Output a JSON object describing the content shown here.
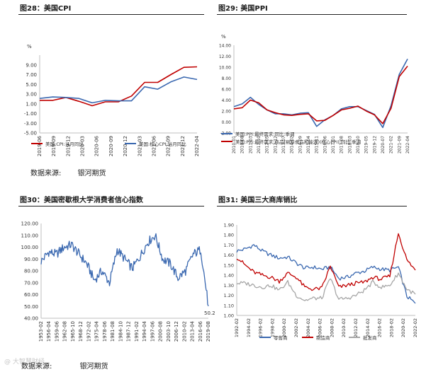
{
  "sections": {
    "top_left_title": "图28：美国CPI",
    "top_right_title": "图29:   美国PPI",
    "bottom_left_title": "图30：美国密歇根大学消费者信心指数",
    "bottom_right_title": "图31:   美国三大商库销比"
  },
  "source_top": {
    "label": "数据来源:",
    "value": "银河期货"
  },
  "source_bottom": {
    "label": "数据来源:",
    "value": "银河期货"
  },
  "watermark": "@ 大智慧财经",
  "colors": {
    "red": "#c00000",
    "blue": "#3a68b0",
    "gray": "#a6a6a6",
    "axis": "#bfbfbf",
    "tick": "#333333",
    "rule": "#222222"
  },
  "chart_data": [
    {
      "id": "cpi",
      "type": "line",
      "title": "图28：美国CPI",
      "ylabel": "%",
      "ylim": [
        -5,
        11
      ],
      "yticks": [
        -5,
        -3,
        -1,
        1,
        3,
        5,
        7,
        9
      ],
      "ytick_labels": [
        "-5.00",
        "-3.00",
        "-1.00",
        "1.00",
        "3.00",
        "5.00",
        "7.00",
        "9.00"
      ],
      "x": [
        "2019-06",
        "2019-09",
        "2019-12",
        "2020-03",
        "2020-06",
        "2020-09",
        "2020-12",
        "2021-03",
        "2021-06",
        "2021-09",
        "2021-12",
        "2022-03",
        "2022-05"
      ],
      "xtick_labels": [
        "2019-06",
        "2019-09",
        "2019-12",
        "2020-03",
        "2020-06",
        "2020-09",
        "2020-12",
        "2021-03",
        "2021-06",
        "2021-09",
        "2021-12",
        "2022-04"
      ],
      "series": [
        {
          "name": "美国:CPI:当月同比",
          "color": "red",
          "values": [
            1.7,
            1.7,
            2.3,
            1.5,
            0.6,
            1.4,
            1.4,
            2.6,
            5.4,
            5.4,
            7.0,
            8.5,
            8.6
          ]
        },
        {
          "name": "美国:核心CPI:当月同比",
          "color": "blue",
          "values": [
            2.1,
            2.4,
            2.3,
            2.1,
            1.2,
            1.7,
            1.6,
            1.6,
            4.5,
            4.0,
            5.5,
            6.5,
            6.0
          ]
        }
      ],
      "legend": "bottom"
    },
    {
      "id": "ppi",
      "type": "line",
      "title": "图29: 美国PPI",
      "ylabel": "%",
      "ylim": [
        -2,
        14
      ],
      "yticks": [
        -2,
        0,
        2,
        4,
        6,
        8,
        10,
        12,
        14
      ],
      "ytick_labels": [
        "-2.00",
        "0.00",
        "2.00",
        "4.00",
        "6.00",
        "8.00",
        "10.00",
        "12.00",
        "14.00"
      ],
      "x": [
        "2010-01",
        "2010-08",
        "2011-03",
        "2011-10",
        "2012-05",
        "2012-12",
        "2013-07",
        "2014-02",
        "2014-09",
        "2015-04",
        "2015-11",
        "2016-06",
        "2017-01",
        "2017-08",
        "2018-03",
        "2018-10",
        "2019-05",
        "2019-12",
        "2020-07",
        "2021-02",
        "2021-09",
        "2022-04"
      ],
      "xtick_labels": [
        "2010-01",
        "2010-08",
        "2011-03",
        "2011-10",
        "2012-05",
        "2012-12",
        "2013-07",
        "2014-02",
        "2014-09",
        "2015-04",
        "2015-11",
        "2016-06",
        "2017-01",
        "2017-08",
        "2018-03",
        "2018-10",
        "2019-05",
        "2019-12",
        "2020-07",
        "2021-02",
        "2021-09",
        "2022-04"
      ],
      "series": [
        {
          "name": "美国:PPI:最终需求:同比:季调",
          "color": "blue",
          "values": [
            2.8,
            3.3,
            4.5,
            3.2,
            2.2,
            1.5,
            1.5,
            1.3,
            1.6,
            1.7,
            -0.8,
            0.4,
            1.2,
            2.4,
            2.8,
            2.8,
            2.1,
            1.4,
            -1.0,
            3.0,
            8.7,
            11.5
          ]
        },
        {
          "name": "美国:PPI:最终需求:商品(剔除食品和能源)(核心PPI):同比:季调",
          "color": "red",
          "values": [
            2.4,
            2.6,
            4.0,
            3.5,
            2.2,
            1.7,
            1.3,
            1.2,
            1.4,
            1.5,
            0.2,
            0.3,
            1.2,
            2.2,
            2.5,
            2.9,
            2.0,
            1.3,
            -0.3,
            2.5,
            8.3,
            10.2
          ]
        }
      ],
      "legend": "bottom"
    },
    {
      "id": "michigan",
      "type": "line",
      "title": "图30：美国密歇根大学消费者信心指数",
      "ylim": [
        40,
        120
      ],
      "yticks": [
        40,
        50,
        60,
        70,
        80,
        90,
        100,
        110,
        120
      ],
      "ytick_labels": [
        "40.00",
        "50.00",
        "60.00",
        "70.00",
        "80.00",
        "90.00",
        "100.00",
        "110.00",
        "120.00"
      ],
      "x": [
        "1953-02",
        "1956-04",
        "1959-06",
        "1962-08",
        "1965-10",
        "1968-12",
        "1972-02",
        "1975-04",
        "1978-06",
        "1981-08",
        "1984-10",
        "1987-12",
        "1991-02",
        "1994-04",
        "1997-06",
        "2000-08",
        "2003-10",
        "2006-12",
        "2010-02",
        "2013-04",
        "2016-06",
        "2019-08",
        "2022-05"
      ],
      "xtick_labels": [
        "1953-02",
        "1956-04",
        "1959-06",
        "1962-08",
        "1965-10",
        "1968-12",
        "1972-02",
        "1975-04",
        "1978-06",
        "1981-08",
        "1984-10",
        "1987-12",
        "1991-02",
        "1994-04",
        "1997-06",
        "2000-08",
        "2003-10",
        "2006-12",
        "2010-02",
        "2013-04",
        "2016-06",
        "2019-08"
      ],
      "series": [
        {
          "name": "美国:密歇根大学消费者信心指数",
          "color": "blue",
          "values": [
            88,
            96,
            94,
            100,
            102,
            94,
            86,
            72,
            80,
            70,
            98,
            90,
            82,
            92,
            104,
            110,
            90,
            86,
            74,
            80,
            94,
            98,
            50.2
          ]
        }
      ],
      "annotation": "50.20"
    },
    {
      "id": "inventory",
      "type": "line",
      "title": "图31: 美国三大商库销比",
      "ylim": [
        1.0,
        1.9
      ],
      "yticks": [
        1.0,
        1.1,
        1.2,
        1.3,
        1.4,
        1.5,
        1.6,
        1.7,
        1.8,
        1.9
      ],
      "ytick_labels": [
        "1.00",
        "1.10",
        "1.20",
        "1.30",
        "1.40",
        "1.50",
        "1.60",
        "1.70",
        "1.80",
        "1.90"
      ],
      "x": [
        "1992-02",
        "1993-08",
        "1995-02",
        "1996-08",
        "1998-02",
        "1999-08",
        "2001-02",
        "2002-08",
        "2004-02",
        "2005-08",
        "2007-02",
        "2008-08",
        "2010-02",
        "2011-08",
        "2013-02",
        "2014-08",
        "2016-02",
        "2017-08",
        "2019-02",
        "2020-05",
        "2020-08",
        "2022-02"
      ],
      "xtick_labels": [
        "1992-02",
        "1994-02",
        "1996-02",
        "1998-02",
        "2000-02",
        "2002-02",
        "2004-02",
        "2006-02",
        "2008-02",
        "2010-02",
        "2012-02",
        "2014-02",
        "2016-02",
        "2018-02",
        "2020-02",
        "2022-02"
      ],
      "series": [
        {
          "name": "零售商",
          "color": "blue",
          "values": [
            1.64,
            1.66,
            1.7,
            1.64,
            1.6,
            1.57,
            1.58,
            1.52,
            1.47,
            1.48,
            1.46,
            1.48,
            1.37,
            1.38,
            1.42,
            1.44,
            1.48,
            1.46,
            1.45,
            1.48,
            1.19,
            1.12
          ]
        },
        {
          "name": "制造商",
          "color": "red",
          "values": [
            1.58,
            1.5,
            1.43,
            1.4,
            1.38,
            1.34,
            1.42,
            1.38,
            1.28,
            1.26,
            1.27,
            1.49,
            1.28,
            1.3,
            1.32,
            1.33,
            1.38,
            1.36,
            1.39,
            1.82,
            1.55,
            1.45
          ]
        },
        {
          "name": "批发商",
          "color": "gray",
          "values": [
            1.32,
            1.32,
            1.3,
            1.28,
            1.3,
            1.25,
            1.33,
            1.2,
            1.15,
            1.17,
            1.17,
            1.37,
            1.16,
            1.17,
            1.2,
            1.25,
            1.33,
            1.28,
            1.3,
            1.42,
            1.26,
            1.21
          ]
        }
      ],
      "legend": "bottom"
    }
  ]
}
